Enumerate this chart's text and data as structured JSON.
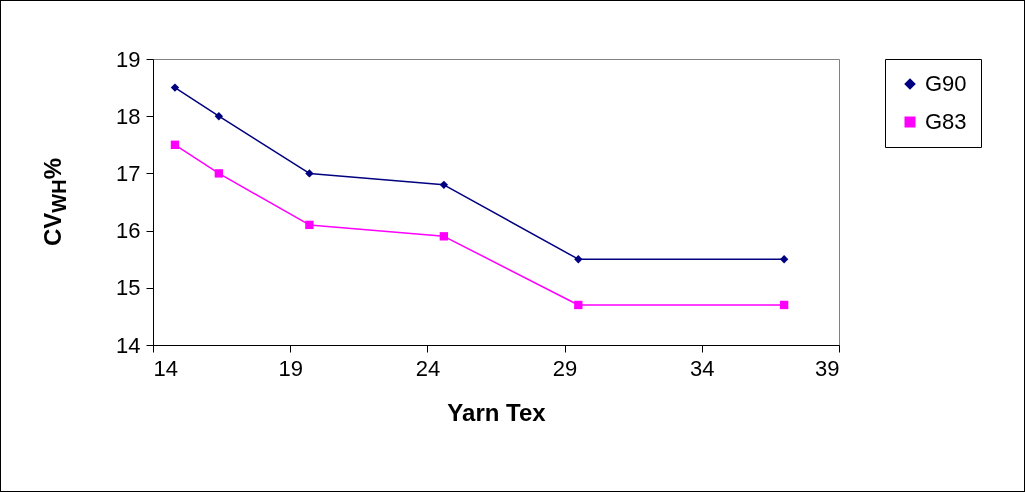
{
  "chart_data": {
    "type": "line",
    "xlabel": "Yarn Tex",
    "ylabel": "CV$_{WH}$%",
    "x": [
      14.8,
      16.4,
      19.7,
      24.6,
      29.5,
      37
    ],
    "series": [
      {
        "name": "G90",
        "color": "#000080",
        "marker": "diamond",
        "values": [
          18.5,
          18.0,
          17.0,
          16.8,
          15.5,
          15.5
        ]
      },
      {
        "name": "G83",
        "color": "#ff00ff",
        "marker": "square",
        "values": [
          17.5,
          17.0,
          16.1,
          15.9,
          14.7,
          14.7
        ]
      }
    ],
    "xlim": [
      14,
      39
    ],
    "xticks": [
      14,
      19,
      24,
      29,
      34,
      39
    ],
    "ylim": [
      14,
      19
    ],
    "yticks": [
      14,
      15,
      16,
      17,
      18,
      19
    ],
    "grid": false,
    "legend": "right",
    "line_style": "solid"
  }
}
